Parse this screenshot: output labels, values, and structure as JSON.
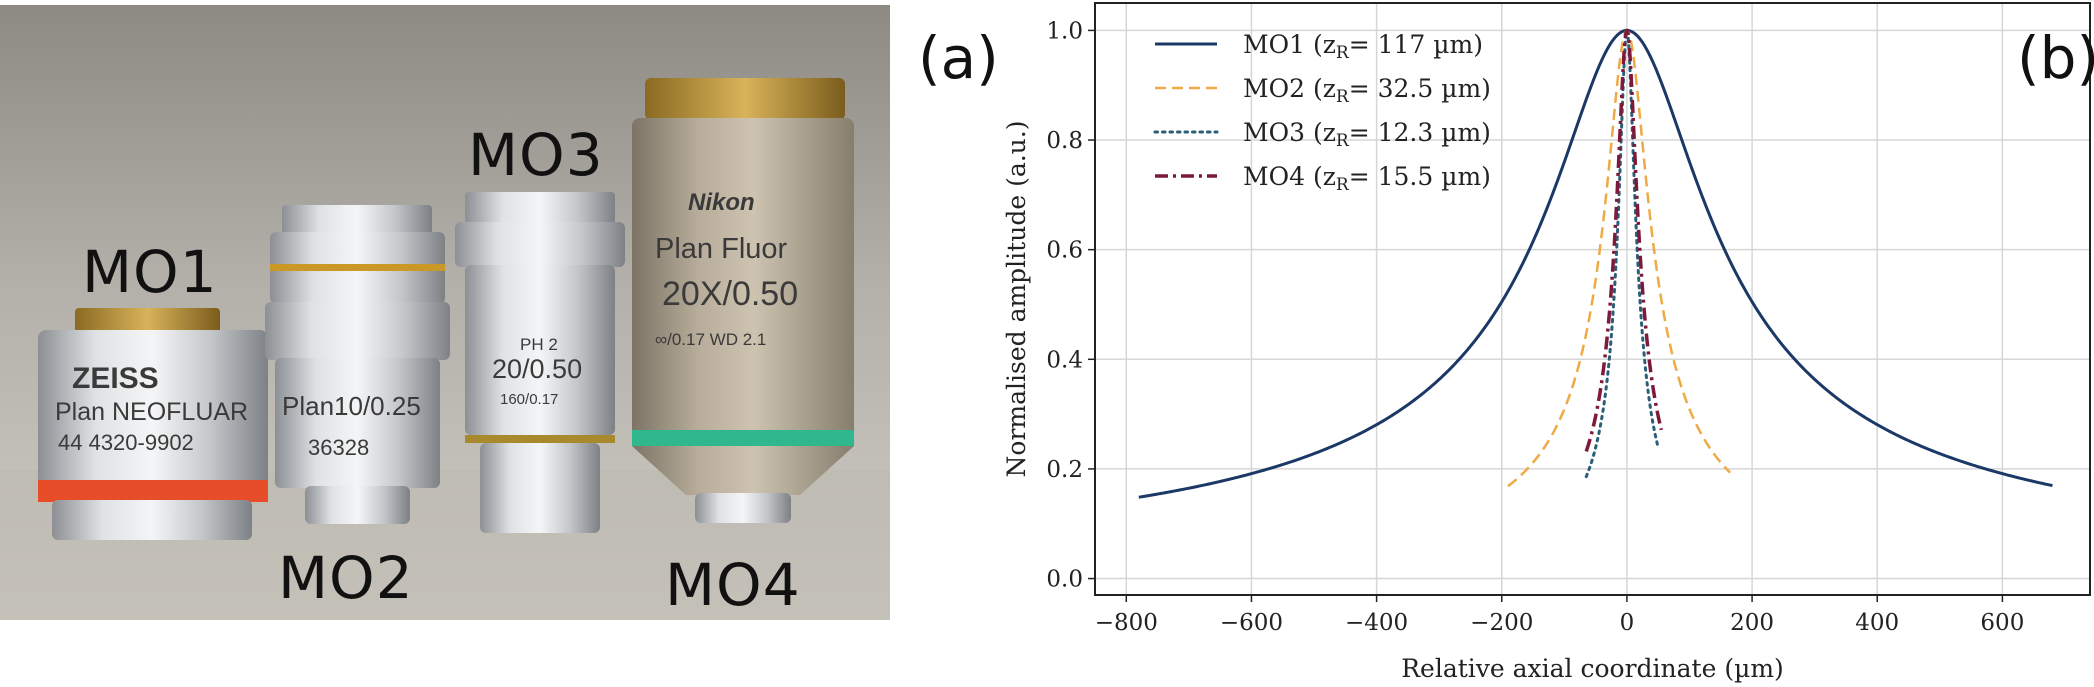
{
  "photo": {
    "panel_label": "(a)",
    "lenses": [
      {
        "name": "MO1",
        "engraving": [
          "ZEISS",
          "Plan NEOFLUAR",
          "44 4320-9902"
        ]
      },
      {
        "name": "MO2",
        "engraving": [
          "Plan10/0.25",
          "36328"
        ]
      },
      {
        "name": "MO3",
        "engraving": [
          "PH 2",
          "20/0.50",
          "160/0.17"
        ]
      },
      {
        "name": "MO4",
        "engraving": [
          "Nikon",
          "Plan Fluor",
          "20X/0.50",
          "∞/0.17  WD 2.1"
        ]
      }
    ]
  },
  "colors": {
    "mo1": "#1b3866",
    "mo2": "#eeaa44",
    "mo3": "#2b5f78",
    "mo4": "#7d1a3c",
    "grid": "#d6d6d6"
  },
  "chart_data": {
    "type": "line",
    "panel_label": "(b)",
    "xlabel": "Relative axial coordinate (µm)",
    "ylabel": "Normalised amplitude (a.u.)",
    "xlim": [
      -850,
      740
    ],
    "ylim": [
      -0.03,
      1.05
    ],
    "xticks": [
      -800,
      -600,
      -400,
      -200,
      0,
      200,
      400,
      600
    ],
    "xtick_labels": [
      "−800",
      "−600",
      "−400",
      "−200",
      "0",
      "200",
      "400",
      "600"
    ],
    "yticks": [
      0.0,
      0.2,
      0.4,
      0.6,
      0.8,
      1.0
    ],
    "ytick_labels": [
      "0.0",
      "0.2",
      "0.4",
      "0.6",
      "0.8",
      "1.0"
    ],
    "grid": true,
    "legend_position": "top-left",
    "series": [
      {
        "name": "MO1",
        "legend_prefix": "MO1 (z",
        "legend_sub": "R",
        "legend_suffix": "= 117 µm)",
        "z_R": 117,
        "x_range": [
          -780,
          680
        ],
        "style": "solid"
      },
      {
        "name": "MO2",
        "legend_prefix": "MO2 (z",
        "legend_sub": "R",
        "legend_suffix": "= 32.5 µm)",
        "z_R": 32.5,
        "x_range": [
          -190,
          165
        ],
        "style": "dashed"
      },
      {
        "name": "MO3",
        "legend_prefix": "MO3 (z",
        "legend_sub": "R",
        "legend_suffix": "= 12.3 µm)",
        "z_R": 12.3,
        "x_range": [
          -65,
          50
        ],
        "style": "dotted"
      },
      {
        "name": "MO4",
        "legend_prefix": "MO4 (z",
        "legend_sub": "R",
        "legend_suffix": "= 15.5 µm)",
        "z_R": 15.5,
        "x_range": [
          -65,
          55
        ],
        "style": "dashdot"
      }
    ]
  }
}
